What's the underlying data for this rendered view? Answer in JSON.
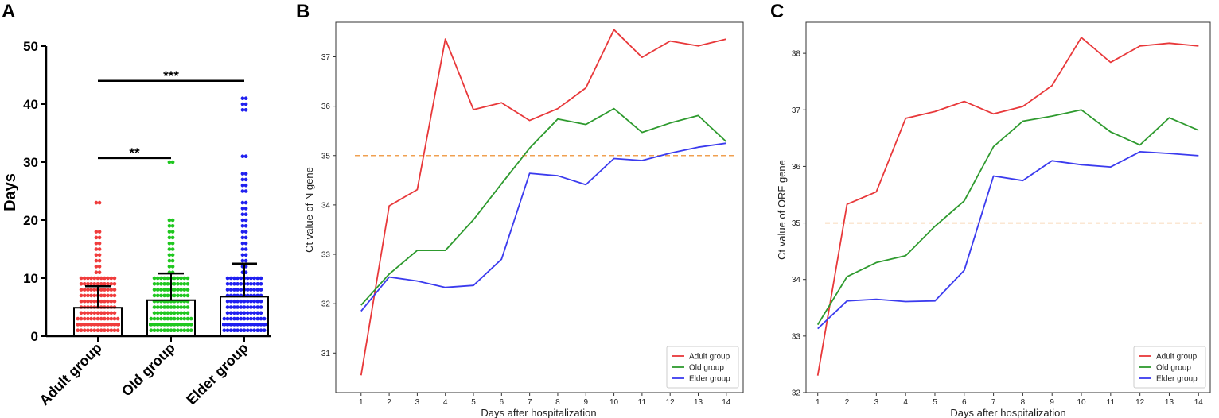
{
  "chart_data": [
    {
      "panel": "A",
      "type": "bar",
      "title": "",
      "ylabel": "Days",
      "xlabel": "",
      "ylim": [
        0,
        50
      ],
      "yticks": [
        0,
        10,
        20,
        30,
        40,
        50
      ],
      "categories": [
        "Adult group",
        "Old group",
        "Elder group"
      ],
      "colors": [
        "#f03c3c",
        "#1fc71f",
        "#1f1ff0"
      ],
      "mean": [
        4.9,
        6.2,
        6.8
      ],
      "error_upper": [
        8.6,
        10.8,
        12.5
      ],
      "median": [
        2,
        2,
        2
      ],
      "outliers": [
        [
          23,
          18,
          17,
          16,
          15,
          14,
          13,
          12,
          11,
          10,
          10,
          9,
          9,
          8,
          8,
          7,
          7,
          6,
          6,
          5,
          5,
          4,
          4,
          3,
          3,
          2,
          2,
          1,
          1
        ],
        [
          30,
          20,
          19,
          18,
          17,
          16,
          15,
          14,
          13,
          12,
          11,
          10,
          10,
          9,
          9,
          8,
          8,
          7,
          7,
          6,
          6,
          5,
          5,
          4,
          4,
          3,
          3,
          2,
          2,
          1,
          1
        ],
        [
          41,
          40,
          39,
          31,
          28,
          27,
          26,
          25,
          23,
          22,
          21,
          20,
          19,
          18,
          17,
          16,
          15,
          14,
          13,
          12,
          11,
          10,
          10,
          9,
          9,
          8,
          8,
          7,
          7,
          6,
          6,
          5,
          5,
          4,
          4,
          3,
          3,
          2,
          2,
          1,
          1
        ]
      ],
      "significance": [
        {
          "from": 0,
          "to": 1,
          "y": 30.7,
          "label": "**"
        },
        {
          "from": 0,
          "to": 2,
          "y": 44,
          "label": "***"
        }
      ]
    },
    {
      "panel": "B",
      "type": "line",
      "title": "",
      "xlabel": "Days after hospitalization",
      "ylabel": "Ct value of N gene",
      "x": [
        1,
        2,
        3,
        4,
        5,
        6,
        7,
        8,
        9,
        10,
        11,
        12,
        13,
        14
      ],
      "xlim": [
        0.1,
        14.6
      ],
      "ylim": [
        30.2,
        37.7
      ],
      "yticks": [
        31,
        32,
        33,
        34,
        35,
        36,
        37
      ],
      "reference_line": {
        "y": 35,
        "color": "#f0a050"
      },
      "legend_location": "bottom-right",
      "series": [
        {
          "name": "Adult group",
          "color": "#e8383a",
          "values": [
            30.55,
            33.98,
            34.31,
            37.36,
            35.93,
            36.07,
            35.71,
            35.95,
            36.37,
            37.55,
            36.99,
            37.32,
            37.22,
            37.36
          ]
        },
        {
          "name": "Old group",
          "color": "#2e9a2e",
          "values": [
            31.97,
            32.6,
            33.08,
            33.08,
            33.7,
            34.43,
            35.15,
            35.74,
            35.63,
            35.95,
            35.47,
            35.66,
            35.81,
            35.28
          ]
        },
        {
          "name": "Elder group",
          "color": "#3b3bee",
          "values": [
            31.85,
            32.54,
            32.46,
            32.33,
            32.37,
            32.9,
            34.64,
            34.59,
            34.41,
            34.94,
            34.9,
            35.05,
            35.17,
            35.25
          ]
        }
      ]
    },
    {
      "panel": "C",
      "type": "line",
      "title": "",
      "xlabel": "Days after hospitalization",
      "ylabel": "Ct value of ORF gene",
      "x": [
        1,
        2,
        3,
        4,
        5,
        6,
        7,
        8,
        9,
        10,
        11,
        12,
        13,
        14
      ],
      "xlim": [
        0.6,
        14.4
      ],
      "ylim": [
        32,
        38.55
      ],
      "yticks": [
        32,
        33,
        34,
        35,
        36,
        37,
        38
      ],
      "reference_line": {
        "y": 35,
        "color": "#f0a050"
      },
      "legend_location": "bottom-right",
      "series": [
        {
          "name": "Adult group",
          "color": "#e8383a",
          "values": [
            32.3,
            35.33,
            35.55,
            36.85,
            36.97,
            37.15,
            36.93,
            37.06,
            37.43,
            38.28,
            37.84,
            38.13,
            38.18,
            38.13
          ]
        },
        {
          "name": "Old group",
          "color": "#2e9a2e",
          "values": [
            33.2,
            34.05,
            34.3,
            34.42,
            34.94,
            35.39,
            36.35,
            36.8,
            36.89,
            37.0,
            36.61,
            36.38,
            36.86,
            36.64
          ]
        },
        {
          "name": "Elder group",
          "color": "#3b3bee",
          "values": [
            33.13,
            33.62,
            33.65,
            33.61,
            33.62,
            34.16,
            35.83,
            35.75,
            36.1,
            36.03,
            35.99,
            36.26,
            36.23,
            36.19
          ]
        }
      ]
    }
  ]
}
